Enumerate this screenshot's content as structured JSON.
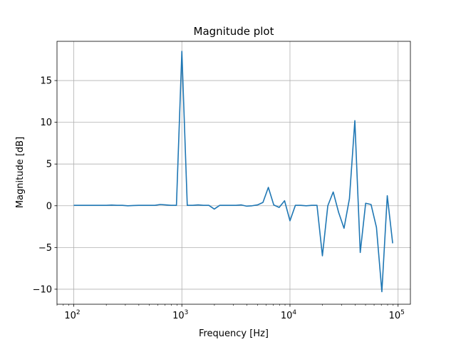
{
  "chart_data": {
    "type": "line",
    "title": "Magnitude plot",
    "xlabel": "Frequency [Hz]",
    "ylabel": "Magnitude [dB]",
    "xscale": "log",
    "xlim": [
      70,
      130000
    ],
    "ylim": [
      -11.8,
      19.7
    ],
    "grid": true,
    "line_color": "#1f77b4",
    "x_ticks": [
      {
        "value": 100,
        "base": "10",
        "exp": "2"
      },
      {
        "value": 1000,
        "base": "10",
        "exp": "3"
      },
      {
        "value": 10000,
        "base": "10",
        "exp": "4"
      },
      {
        "value": 100000,
        "base": "10",
        "exp": "5"
      }
    ],
    "y_ticks": [
      {
        "value": 15,
        "label": "15"
      },
      {
        "value": 10,
        "label": "10"
      },
      {
        "value": 5,
        "label": "5"
      },
      {
        "value": 0,
        "label": "0"
      },
      {
        "value": -5,
        "label": "−5"
      },
      {
        "value": -10,
        "label": "−10"
      }
    ],
    "series": [
      {
        "x": [
          100,
          112,
          126,
          141,
          158,
          178,
          200,
          224,
          251,
          282,
          316,
          355,
          398,
          447,
          501,
          562,
          631,
          708,
          794,
          891,
          1000,
          1122,
          1259,
          1413,
          1585,
          1778,
          1995,
          2239,
          2512,
          2818,
          3162,
          3548,
          3981,
          4467,
          5012,
          5623,
          6310,
          7079,
          7943,
          8913,
          10000,
          11220,
          12589,
          14125,
          15849,
          17783,
          19953,
          22387,
          25119,
          28184,
          31623,
          35481,
          39811,
          44668,
          50119,
          56234,
          63096,
          70795,
          79433,
          89125
        ],
        "y": [
          0.05,
          0.05,
          0.05,
          0.05,
          0.05,
          0.05,
          0.05,
          0.08,
          0.05,
          0.05,
          0.0,
          0.03,
          0.05,
          0.05,
          0.05,
          0.05,
          0.15,
          0.1,
          0.05,
          0.05,
          18.5,
          0.05,
          0.05,
          0.1,
          0.05,
          0.05,
          -0.4,
          0.05,
          0.05,
          0.05,
          0.05,
          0.1,
          -0.05,
          0.0,
          0.1,
          0.4,
          2.2,
          0.1,
          -0.2,
          0.6,
          -1.8,
          0.05,
          0.05,
          0.0,
          0.05,
          0.05,
          -6.0,
          0.0,
          1.65,
          -0.8,
          -2.7,
          0.85,
          10.2,
          -5.6,
          0.3,
          0.15,
          -2.6,
          -10.3,
          1.2,
          -4.5
        ]
      }
    ]
  }
}
